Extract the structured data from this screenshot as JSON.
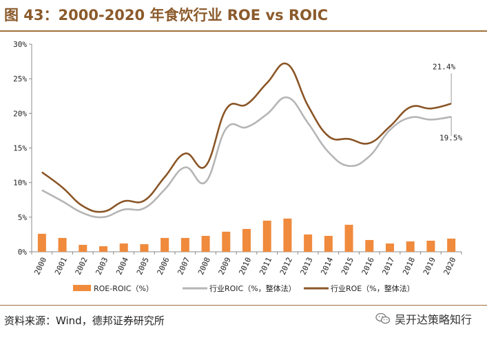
{
  "header": {
    "title": "图 43：2000-2020 年食饮行业 ROE vs ROIC"
  },
  "footer": {
    "source": "资料来源：Wind，德邦证券研究所",
    "watermark": "吴开达策略知行",
    "watermark_icon": "wechat-icon"
  },
  "colors": {
    "bar": "#f08a3c",
    "roic": "#b5b5b5",
    "roe": "#8a5526",
    "title": "#8b5a2b"
  },
  "chart_data": {
    "type": "bar+line",
    "categories": [
      "2000",
      "2001",
      "2002",
      "2003",
      "2004",
      "2005",
      "2006",
      "2007",
      "2008",
      "2009",
      "2010",
      "2011",
      "2012",
      "2013",
      "2014",
      "2015",
      "2016",
      "2017",
      "2018",
      "2019",
      "2020"
    ],
    "series": [
      {
        "name": "ROE-ROIC（%）",
        "type": "bar",
        "values": [
          2.6,
          2.0,
          1.0,
          0.8,
          1.2,
          1.1,
          2.0,
          2.0,
          2.3,
          2.9,
          3.3,
          4.5,
          4.8,
          2.5,
          2.3,
          3.9,
          1.7,
          1.2,
          1.5,
          1.6,
          1.9
        ]
      },
      {
        "name": "行业ROIC（%，整体法）",
        "type": "line",
        "values": [
          8.9,
          7.3,
          5.6,
          5.0,
          6.1,
          6.3,
          9.0,
          12.2,
          10.1,
          17.8,
          18.0,
          19.9,
          22.3,
          18.6,
          14.4,
          12.4,
          13.8,
          17.6,
          19.4,
          19.1,
          19.5
        ]
      },
      {
        "name": "行业ROE（%，整体法）",
        "type": "line",
        "values": [
          11.5,
          9.3,
          6.6,
          5.8,
          7.3,
          7.4,
          10.8,
          14.2,
          12.4,
          20.6,
          21.3,
          24.4,
          27.1,
          21.1,
          16.7,
          16.3,
          15.7,
          18.1,
          20.9,
          20.7,
          21.4
        ]
      }
    ],
    "ylim": [
      0,
      30
    ],
    "yticks": [
      "0%",
      "5%",
      "10%",
      "15%",
      "20%",
      "25%",
      "30%"
    ],
    "annotations": [
      {
        "label": "21.4%",
        "series": "行业ROE（%，整体法）",
        "category": "2020"
      },
      {
        "label": "19.5%",
        "series": "行业ROIC（%，整体法）",
        "category": "2020"
      }
    ],
    "legend_position": "bottom",
    "grid": false
  }
}
